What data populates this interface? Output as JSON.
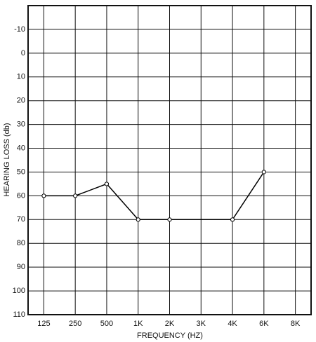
{
  "chart_data": {
    "type": "line",
    "y_label": "HEARING LOSS (db)",
    "x_label": "FREQUENCY (HZ)",
    "categories": [
      "125",
      "250",
      "500",
      "1K",
      "2K",
      "3K",
      "4K",
      "6K",
      "8K"
    ],
    "series": [
      {
        "color": "#000000",
        "x": [
          "125",
          "250",
          "500",
          "1K",
          "2K",
          "4K",
          "6K"
        ],
        "values": [
          60,
          60,
          55,
          70,
          70,
          70,
          50
        ]
      }
    ],
    "ylim": [
      -20,
      110
    ],
    "y_reversed": true,
    "yticks": [
      -10,
      0,
      10,
      20,
      30,
      40,
      50,
      60,
      70,
      80,
      90,
      100,
      110
    ],
    "grid": true
  }
}
